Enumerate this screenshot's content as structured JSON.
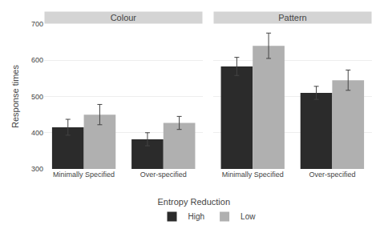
{
  "chart_data": [
    {
      "type": "bar",
      "title": "Colour",
      "y_label": "Response times",
      "categories": [
        "Minimally Specified",
        "Over-specified"
      ],
      "series": [
        {
          "name": "High",
          "color": "#2b2b2b",
          "values": [
            415,
            382
          ],
          "errors": [
            22,
            18
          ]
        },
        {
          "name": "Low",
          "color": "#b0b0b0",
          "values": [
            450,
            427
          ],
          "errors": [
            28,
            18
          ]
        }
      ],
      "ylim": [
        300,
        700
      ],
      "yticks": [
        300,
        400,
        500,
        600,
        700
      ],
      "grid": true,
      "legend": "bottom",
      "legend_title": "Entropy Reduction"
    },
    {
      "type": "bar",
      "title": "Pattern",
      "categories": [
        "Minimally Specified",
        "Over-specified"
      ],
      "series": [
        {
          "name": "High",
          "color": "#2b2b2b",
          "values": [
            583,
            510
          ],
          "errors": [
            25,
            18
          ]
        },
        {
          "name": "Low",
          "color": "#b0b0b0",
          "values": [
            640,
            545
          ],
          "errors": [
            35,
            28
          ]
        }
      ],
      "ylim": [
        300,
        700
      ],
      "yticks": [
        300,
        400,
        500,
        600,
        700
      ],
      "grid": true,
      "tick_labels": "x"
    }
  ]
}
